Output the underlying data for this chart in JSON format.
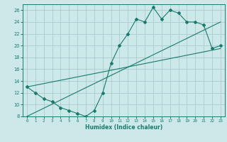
{
  "title": "",
  "xlabel": "Humidex (Indice chaleur)",
  "bg_color": "#cce8e8",
  "grid_color": "#aacccc",
  "line_color": "#1a7a6e",
  "xlim": [
    -0.5,
    23.5
  ],
  "ylim": [
    8,
    27
  ],
  "xticks": [
    0,
    1,
    2,
    3,
    4,
    5,
    6,
    7,
    8,
    9,
    10,
    11,
    12,
    13,
    14,
    15,
    16,
    17,
    18,
    19,
    20,
    21,
    22,
    23
  ],
  "yticks": [
    8,
    10,
    12,
    14,
    16,
    18,
    20,
    22,
    24,
    26
  ],
  "main_x": [
    0,
    1,
    2,
    3,
    4,
    5,
    6,
    7,
    8,
    9,
    10,
    11,
    12,
    13,
    14,
    15,
    16,
    17,
    18,
    19,
    20,
    21,
    22,
    23
  ],
  "main_y": [
    13,
    12,
    11,
    10.5,
    9.5,
    9,
    8.5,
    8,
    9,
    12,
    17,
    20,
    22,
    24.5,
    24,
    26.5,
    24.5,
    26,
    25.5,
    24,
    24,
    23.5,
    19.5,
    20
  ],
  "line1_x": [
    0,
    23
  ],
  "line1_y": [
    13,
    19.5
  ],
  "line2_x": [
    0,
    23
  ],
  "line2_y": [
    8,
    24
  ]
}
